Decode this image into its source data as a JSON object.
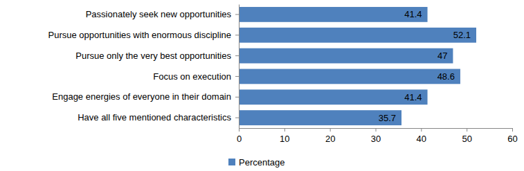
{
  "chart_data": {
    "type": "bar",
    "orientation": "horizontal",
    "categories": [
      "Passionately seek new opportunities",
      "Pursue opportunities with enormous discipline",
      "Pursue only the very best opportunities",
      "Focus on execution",
      "Engage energies of everyone in their domain",
      "Have all five mentioned characteristics"
    ],
    "series": [
      {
        "name": "Percentage",
        "color": "#4f81bd",
        "values": [
          41.4,
          52.1,
          47,
          48.6,
          41.4,
          35.7
        ]
      }
    ],
    "xlim": [
      0,
      60
    ],
    "xticks": [
      0,
      10,
      20,
      30,
      40,
      50,
      60
    ],
    "data_labels": true,
    "grid": false,
    "legend": "bottom"
  }
}
